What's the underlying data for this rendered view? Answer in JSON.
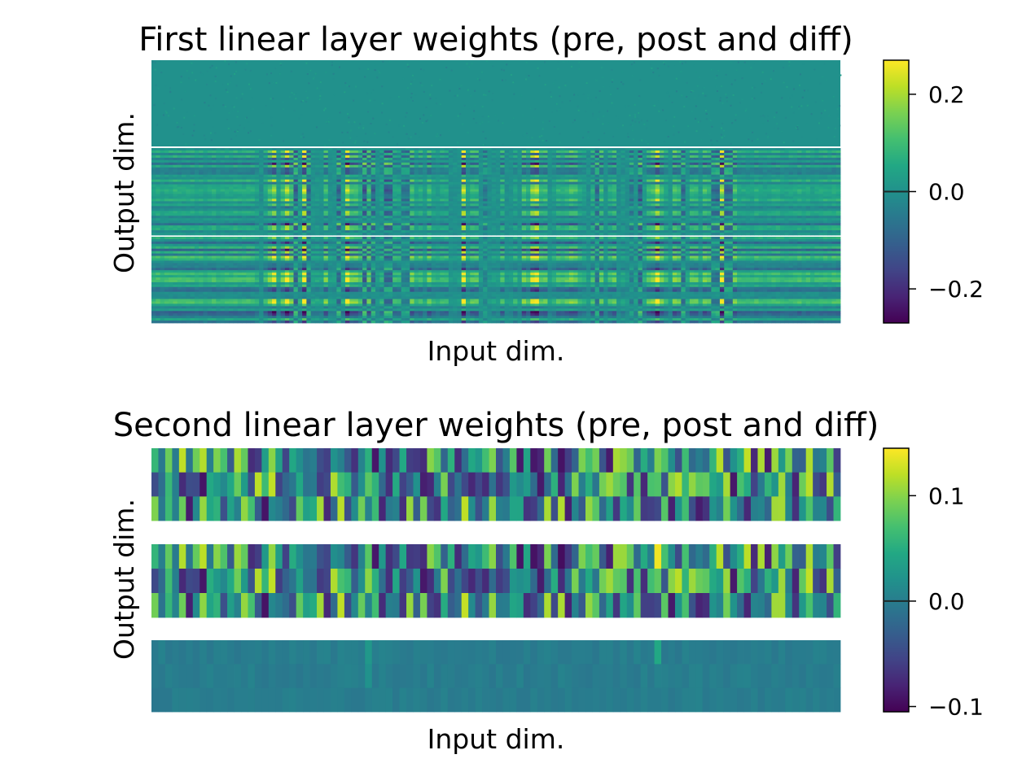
{
  "chart_data": [
    {
      "type": "heatmap",
      "title": "First linear layer weights (pre, post and diff)",
      "xlabel": "Input dim.",
      "ylabel": "Output dim.",
      "colormap": "viridis",
      "panels": [
        "pre",
        "post",
        "diff"
      ],
      "panel_separator": "thin white line",
      "colorbar": {
        "ticks": [
          0.2,
          0.0,
          -0.2
        ],
        "tick_labels": [
          "0.2",
          "0.0",
          "−0.2"
        ],
        "vmin": -0.27,
        "vmax": 0.27
      },
      "grid": false,
      "axis_ticks_shown": false
    },
    {
      "type": "heatmap",
      "title": "Second linear layer weights (pre, post and diff)",
      "xlabel": "Input dim.",
      "ylabel": "Output dim.",
      "colormap": "viridis",
      "panels": [
        "pre",
        "post",
        "diff"
      ],
      "panel_separator": "white gap",
      "rows_per_panel": 3,
      "columns": 100,
      "colorbar": {
        "ticks": [
          0.1,
          0.0,
          -0.1
        ],
        "tick_labels": [
          "0.1",
          "0.0",
          "−0.1"
        ],
        "vmin": -0.105,
        "vmax": 0.145
      },
      "grid": false,
      "axis_ticks_shown": false
    }
  ]
}
